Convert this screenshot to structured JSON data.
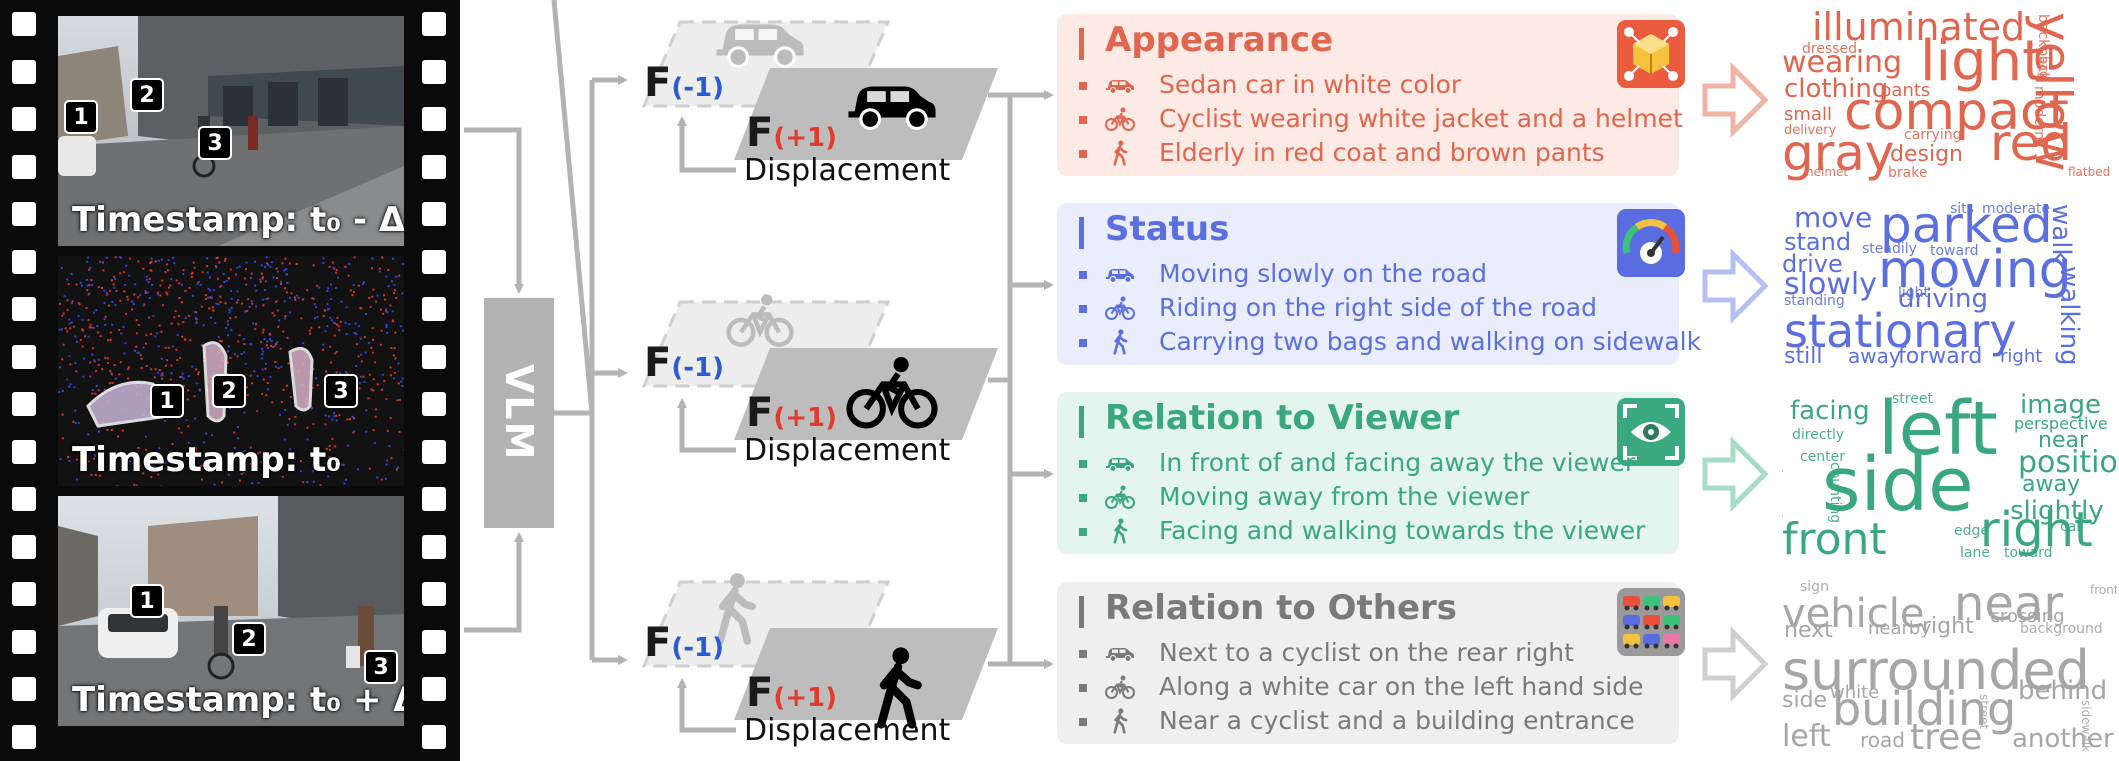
{
  "frames": [
    {
      "timestamp": "Timestamp: t₀ - Δt",
      "labels": [
        "1",
        "2",
        "3"
      ]
    },
    {
      "timestamp": "Timestamp: t₀",
      "labels": [
        "1",
        "2",
        "3"
      ]
    },
    {
      "timestamp": "Timestamp: t₀ + Δt",
      "labels": [
        "1",
        "2",
        "3"
      ]
    }
  ],
  "vlm_label": "VLM",
  "feature_groups": [
    {
      "object_icon": "car-icon",
      "f_prev": "F",
      "f_prev_sub": "(-1)",
      "f_next": "F",
      "f_next_sub": "(+1)",
      "displacement": "Displacement"
    },
    {
      "object_icon": "bicycle-icon",
      "f_prev": "F",
      "f_prev_sub": "(-1)",
      "f_next": "F",
      "f_next_sub": "(+1)",
      "displacement": "Displacement"
    },
    {
      "object_icon": "pedestrian-icon",
      "f_prev": "F",
      "f_prev_sub": "(-1)",
      "f_next": "F",
      "f_next_sub": "(+1)",
      "displacement": "Displacement"
    }
  ],
  "panels": [
    {
      "title": "Appearance",
      "color": "#e0664f",
      "bg": "#fdeae5",
      "badge_color": "#ea5b3f",
      "badge_icon": "cube-network-icon",
      "items": [
        {
          "icon": "car-icon",
          "text": "Sedan car  in white color"
        },
        {
          "icon": "bicycle-icon",
          "text": "Cyclist wearing white jacket and a helmet"
        },
        {
          "icon": "pedestrian-icon",
          "text": "Elderly in red coat and brown pants"
        }
      ]
    },
    {
      "title": "Status",
      "color": "#5b6fe0",
      "bg": "#eaedfd",
      "badge_color": "#5a6de0",
      "badge_icon": "gauge-icon",
      "items": [
        {
          "icon": "car-icon",
          "text": "Moving slowly on the road"
        },
        {
          "icon": "bicycle-icon",
          "text": "Riding on the right side of the road"
        },
        {
          "icon": "pedestrian-icon",
          "text": "Carrying two bags and walking on sidewalk"
        }
      ]
    },
    {
      "title": "Relation to Viewer",
      "color": "#3aa77f",
      "bg": "#e3f5ee",
      "badge_color": "#3aa881",
      "badge_icon": "eye-scan-icon",
      "items": [
        {
          "icon": "car-icon",
          "text": "In front of and facing away the viewer"
        },
        {
          "icon": "bicycle-icon",
          "text": "Moving away from the viewer"
        },
        {
          "icon": "pedestrian-icon",
          "text": "Facing and walking towards the viewer"
        }
      ]
    },
    {
      "title": "Relation to Others",
      "color": "#7a7a7a",
      "bg": "#efefef",
      "badge_color": "#9a9a9a",
      "badge_icon": "traffic-cars-icon",
      "items": [
        {
          "icon": "car-icon",
          "text": "Next to a cyclist on the rear right"
        },
        {
          "icon": "bicycle-icon",
          "text": "Along a white car on the left hand side"
        },
        {
          "icon": "pedestrian-icon",
          "text": "Near a cyclist and a building entrance"
        }
      ]
    }
  ],
  "word_clouds": [
    {
      "color": "#e0664f",
      "words": [
        "illuminated",
        "light",
        "wearing",
        "dressed",
        "clothing",
        "pants",
        "compact",
        "yellow",
        "backpack",
        "bag",
        "small",
        "delivery",
        "gray",
        "design",
        "carrying",
        "red",
        "modern",
        "helmet",
        "brake",
        "flatbed"
      ]
    },
    {
      "color": "#5b6fe0",
      "words": [
        "move",
        "parked",
        "sits",
        "moderate",
        "stand",
        "drive",
        "steadily",
        "toward",
        "walk",
        "slowly",
        "moving",
        "light",
        "driving",
        "standing",
        "walking",
        "stationary",
        "still",
        "away",
        "forward",
        "right"
      ]
    },
    {
      "color": "#3aa77f",
      "words": [
        "facing",
        "street",
        "image",
        "left",
        "directly",
        "perspective",
        "near",
        "ahead",
        "center",
        "side",
        "positioned",
        "away",
        "counting",
        "slightly",
        "car",
        "front",
        "edge",
        "right",
        "lane",
        "toward"
      ]
    },
    {
      "color": "#a6a6a6",
      "words": [
        "sign",
        "near",
        "vehicle",
        "front",
        "crossing",
        "next",
        "nearby",
        "right",
        "background",
        "surrounded",
        "white",
        "behind",
        "side",
        "building",
        "street",
        "sidewalk",
        "left",
        "road",
        "tree",
        "another"
      ]
    }
  ]
}
